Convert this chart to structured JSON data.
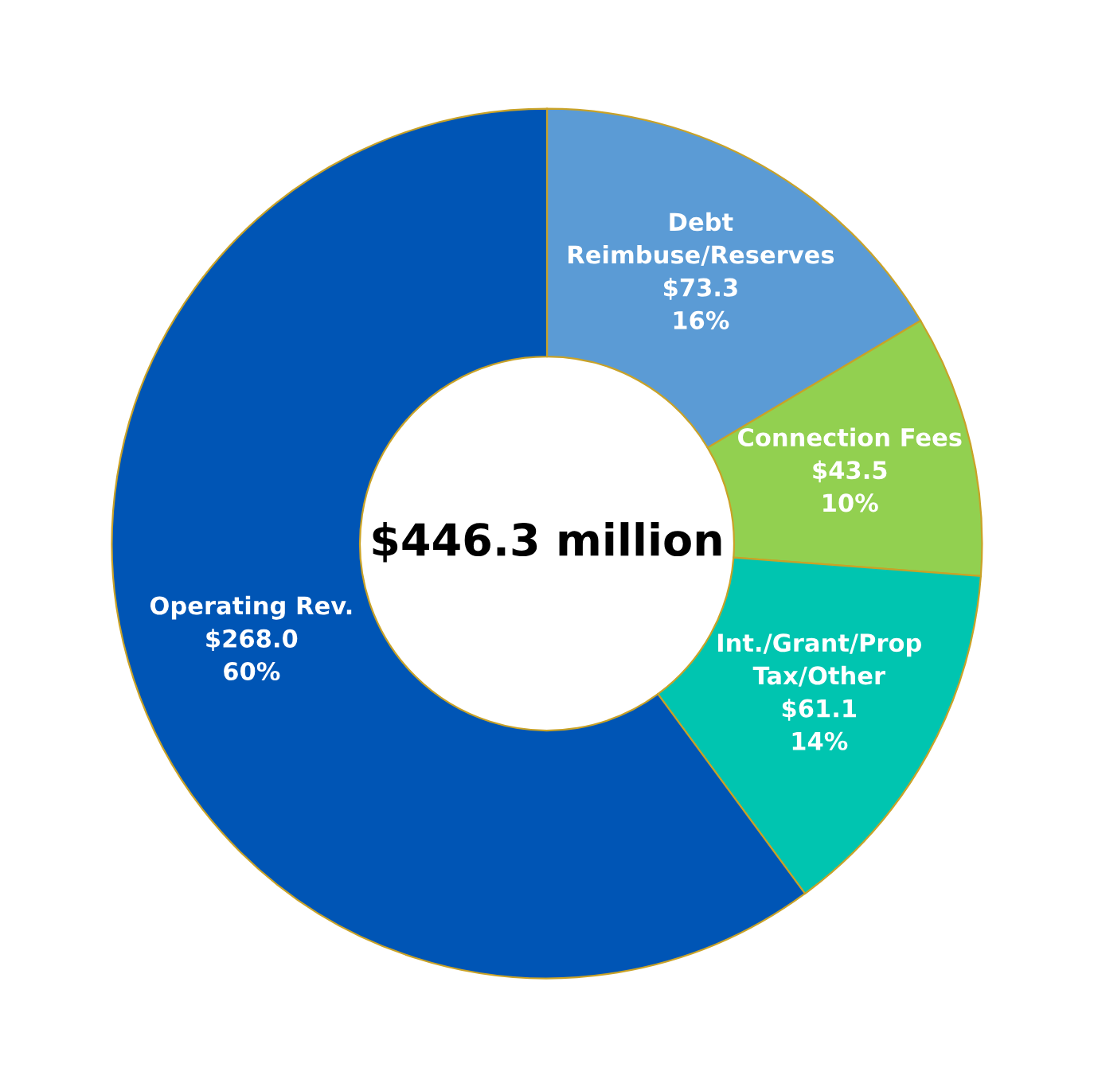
{
  "chart_data": {
    "type": "donut",
    "categories": [
      "Debt\nReimbuse/Reserves",
      "Connection Fees",
      "Int./Grant/Prop\nTax/Other",
      "Operating Rev."
    ],
    "values": [
      73.3,
      43.5,
      61.1,
      268.0
    ],
    "colors": [
      "#5b9bd5",
      "#92d050",
      "#00c5b0",
      "#0055b5"
    ],
    "value_labels": [
      "$73.3\n16%",
      "$43.5\n10%",
      "$61.1\n14%",
      "$268.0\n60%"
    ],
    "annotations": [
      "$446.3 million"
    ],
    "legend": false
  }
}
